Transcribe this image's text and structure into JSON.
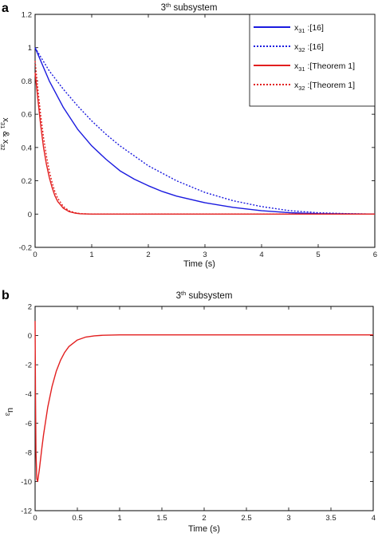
{
  "colors": {
    "blue": "#1a1adf",
    "red": "#e21f1f",
    "axis": "#000000"
  },
  "chart_data": [
    {
      "panel_label": "a",
      "type": "line",
      "title_main": "3",
      "title_sup": "th",
      "title_rest": " subsystem",
      "xlabel": "Time (s)",
      "ylabel_parts": {
        "a": "x",
        "a_sub": "31",
        "mid": " & x",
        "b_sub": "32"
      },
      "xlim": [
        0,
        6
      ],
      "ylim": [
        -0.2,
        1.2
      ],
      "xticks": [
        "0",
        "1",
        "2",
        "3",
        "4",
        "5",
        "6"
      ],
      "yticks": [
        "-0.2",
        "0",
        "0.2",
        "0.4",
        "0.6",
        "0.8",
        "1",
        "1.2"
      ],
      "legend_position": "top-right",
      "legend": [
        {
          "var": "x",
          "sub": "31",
          "ref": " :[16]",
          "color": "blue",
          "dash": "solid"
        },
        {
          "var": "x",
          "sub": "32",
          "ref": " :[16]",
          "color": "blue",
          "dash": "dotted"
        },
        {
          "var": "x",
          "sub": "31",
          "ref": " :[Theorem 1]",
          "color": "red",
          "dash": "solid"
        },
        {
          "var": "x",
          "sub": "32",
          "ref": " :[Theorem 1]",
          "color": "red",
          "dash": "dotted"
        }
      ],
      "series": [
        {
          "color": "blue",
          "dash": "solid",
          "x": [
            0,
            0.25,
            0.5,
            0.75,
            1,
            1.25,
            1.5,
            1.75,
            2,
            2.25,
            2.5,
            3,
            3.5,
            4,
            4.5,
            5,
            6
          ],
          "y": [
            1.0,
            0.8,
            0.64,
            0.51,
            0.41,
            0.33,
            0.26,
            0.21,
            0.17,
            0.135,
            0.108,
            0.068,
            0.04,
            0.02,
            0.008,
            0.003,
            0.0
          ]
        },
        {
          "color": "blue",
          "dash": "dotted",
          "x": [
            0,
            0.25,
            0.5,
            0.75,
            1,
            1.25,
            1.5,
            1.75,
            2,
            2.5,
            3,
            3.5,
            4,
            4.5,
            5,
            5.5,
            6
          ],
          "y": [
            1.0,
            0.86,
            0.75,
            0.65,
            0.56,
            0.48,
            0.41,
            0.35,
            0.29,
            0.2,
            0.13,
            0.08,
            0.045,
            0.02,
            0.008,
            0.003,
            0.0
          ]
        },
        {
          "color": "red",
          "dash": "solid",
          "x": [
            0,
            0.05,
            0.1,
            0.15,
            0.2,
            0.25,
            0.3,
            0.35,
            0.4,
            0.5,
            0.6,
            0.7,
            0.8,
            1,
            1.5,
            6
          ],
          "y": [
            0.85,
            0.69,
            0.53,
            0.4,
            0.3,
            0.22,
            0.16,
            0.11,
            0.075,
            0.035,
            0.015,
            0.006,
            0.002,
            0.0,
            0.0,
            0.0
          ]
        },
        {
          "color": "red",
          "dash": "dotted",
          "x": [
            0,
            0.05,
            0.1,
            0.15,
            0.2,
            0.25,
            0.3,
            0.35,
            0.4,
            0.5,
            0.6,
            0.7,
            0.8,
            1,
            1.5,
            6
          ],
          "y": [
            0.92,
            0.75,
            0.59,
            0.46,
            0.35,
            0.26,
            0.19,
            0.135,
            0.095,
            0.045,
            0.02,
            0.008,
            0.003,
            0.0,
            0.0,
            0.0
          ]
        }
      ]
    },
    {
      "panel_label": "b",
      "type": "line",
      "title_main": "3",
      "title_sup": "th",
      "title_rest": " subsystem",
      "xlabel": "Time (s)",
      "ylabel_parts": {
        "a": "u",
        "a_sub": "3"
      },
      "xlim": [
        0,
        4
      ],
      "ylim": [
        -12,
        2
      ],
      "xticks": [
        "0",
        "0.5",
        "1",
        "1.5",
        "2",
        "2.5",
        "3",
        "3.5",
        "4"
      ],
      "yticks": [
        "-12",
        "-10",
        "-8",
        "-6",
        "-4",
        "-2",
        "0",
        "2"
      ],
      "series": [
        {
          "color": "red",
          "dash": "solid",
          "x": [
            0,
            0.005,
            0.01,
            0.02,
            0.03,
            0.05,
            0.08,
            0.1,
            0.15,
            0.2,
            0.25,
            0.3,
            0.35,
            0.4,
            0.5,
            0.6,
            0.7,
            0.8,
            1.0,
            1.5,
            4.0
          ],
          "y": [
            1.0,
            -4.0,
            -8.0,
            -9.8,
            -10.0,
            -9.2,
            -7.7,
            -6.8,
            -4.9,
            -3.5,
            -2.45,
            -1.7,
            -1.15,
            -0.75,
            -0.3,
            -0.1,
            -0.02,
            0.02,
            0.05,
            0.05,
            0.05
          ]
        }
      ]
    }
  ]
}
